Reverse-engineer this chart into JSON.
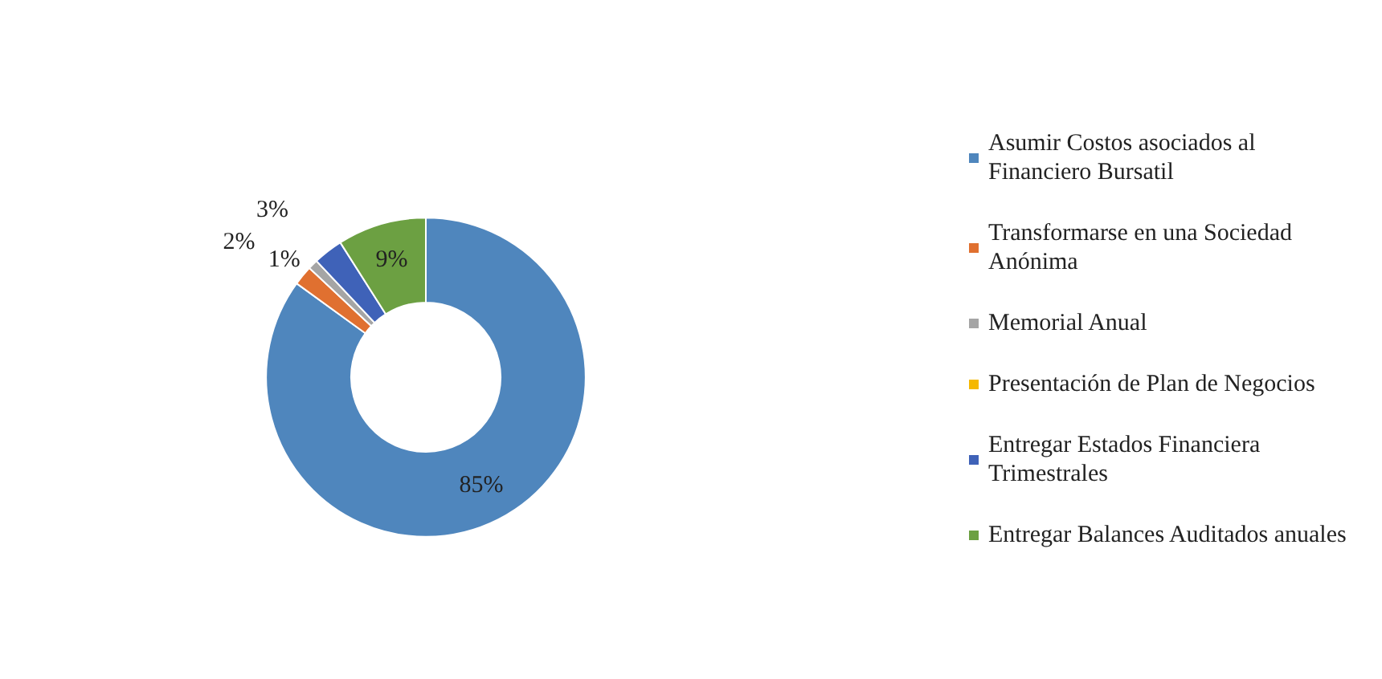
{
  "chart_data": {
    "type": "donut",
    "categories": [
      "Asumir Costos asociados al Financiero Bursatil",
      "Transformarse en una Sociedad Anónima",
      "Memorial Anual",
      "Presentación de Plan de Negocios",
      "Entregar Estados Financiera Trimestrales",
      "Entregar Balances Auditados anuales"
    ],
    "values": [
      85,
      2,
      1,
      0,
      3,
      9
    ],
    "colors": [
      "#4f86bd",
      "#e07030",
      "#a5a5a5",
      "#f5b800",
      "#3f62b8",
      "#6ca042"
    ],
    "value_labels": [
      "85%",
      "2%",
      "1%",
      null,
      "3%",
      "9%"
    ],
    "legend": "right"
  }
}
